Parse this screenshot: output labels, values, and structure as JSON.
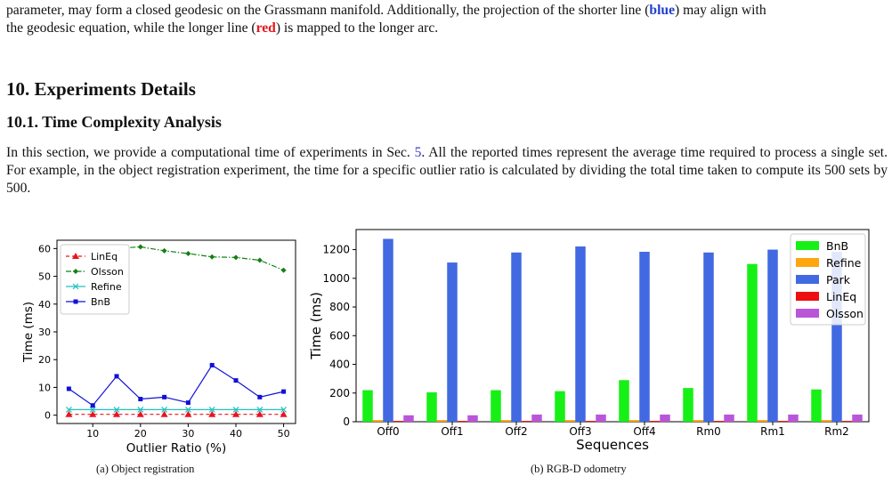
{
  "intro": {
    "line1_pre": "parameter, may form a closed geodesic on the Grassmann manifold. Additionally, the projection of the shorter line (",
    "blue_word": "blue",
    "line1_post": ") may align with",
    "line2_pre": "the geodesic equation, while the longer line (",
    "red_word": "red",
    "line2_post": ") is mapped to the longer arc."
  },
  "section_title": "10. Experiments Details",
  "subsection_title": "10.1. Time Complexity Analysis",
  "body": {
    "pre": "In this section, we provide a computational time of experiments in Sec. ",
    "ref": "5",
    "post": ". All the reported times represent the average time required to process a single set. For example, in the object registration experiment, the time for a specific outlier ratio is calculated by dividing the total time taken to compute its 500 sets by 500."
  },
  "captions": {
    "a": "(a) Object registration",
    "b": "(b) RGB-D odometry"
  },
  "chart_data": [
    {
      "type": "line",
      "xlabel": "Outlier Ratio (%)",
      "ylabel": "Time (ms)",
      "x": [
        5,
        10,
        15,
        20,
        25,
        30,
        35,
        40,
        45,
        50
      ],
      "xticks": [
        10,
        20,
        30,
        40,
        50
      ],
      "yticks": [
        0,
        10,
        20,
        30,
        40,
        50,
        60
      ],
      "xlim": [
        2.5,
        52.5
      ],
      "ylim": [
        -3,
        63
      ],
      "legend_position": "top-left",
      "grid": false,
      "series": [
        {
          "name": "LinEq",
          "color": "#e8141e",
          "marker": "triangle",
          "dash": "4,3",
          "values": [
            0.3,
            0.3,
            0.3,
            0.3,
            0.3,
            0.3,
            0.3,
            0.3,
            0.3,
            0.3
          ]
        },
        {
          "name": "Olsson",
          "color": "#138013",
          "marker": "diamond",
          "dash": "6,2,1.5,2",
          "values": [
            59,
            59.6,
            60.1,
            60.6,
            59.2,
            58.2,
            57.0,
            56.8,
            55.8,
            52.2
          ]
        },
        {
          "name": "Refine",
          "color": "#21c1c1",
          "marker": "x",
          "dash": "",
          "values": [
            2.0,
            2.0,
            2.0,
            2.0,
            2.0,
            2.0,
            2.0,
            2.0,
            2.0,
            2.0
          ]
        },
        {
          "name": "BnB",
          "color": "#1010d8",
          "marker": "square",
          "dash": "",
          "values": [
            9.5,
            3.5,
            14,
            5.8,
            6.5,
            4.5,
            18,
            12.5,
            6.5,
            8.5
          ]
        }
      ]
    },
    {
      "type": "bar",
      "xlabel": "Sequences",
      "ylabel": "Time (ms)",
      "categories": [
        "Off0",
        "Off1",
        "Off2",
        "Off3",
        "Off4",
        "Rm0",
        "Rm1",
        "Rm2"
      ],
      "yticks": [
        0,
        200,
        400,
        600,
        800,
        1000,
        1200
      ],
      "ylim": [
        0,
        1340
      ],
      "legend_position": "top-right",
      "grid": false,
      "series": [
        {
          "name": "BnB",
          "color": "#16f016",
          "values": [
            220,
            205,
            220,
            213,
            290,
            235,
            1100,
            225
          ]
        },
        {
          "name": "Refine",
          "color": "#ffa510",
          "values": [
            12,
            12,
            12,
            12,
            12,
            12,
            12,
            12
          ]
        },
        {
          "name": "Park",
          "color": "#4169e1",
          "values": [
            1275,
            1110,
            1180,
            1222,
            1185,
            1180,
            1200,
            1185
          ]
        },
        {
          "name": "LinEq",
          "color": "#ee1010",
          "values": [
            6,
            6,
            6,
            6,
            6,
            6,
            6,
            6
          ]
        },
        {
          "name": "Olsson",
          "color": "#bb55d8",
          "values": [
            45,
            45,
            50,
            50,
            50,
            50,
            50,
            50
          ]
        }
      ]
    }
  ]
}
